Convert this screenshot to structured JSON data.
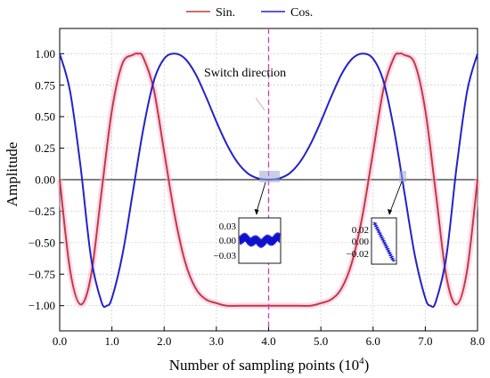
{
  "chart_data": {
    "type": "line",
    "xlabel_main": "Number of sampling points (10",
    "xlabel_sup": "4",
    "xlabel_close": ")",
    "ylabel": "Amplitude",
    "xlim": [
      0,
      8
    ],
    "ylim": [
      -1.2,
      1.2
    ],
    "x_ticks": [
      "0.0",
      "1.0",
      "2.0",
      "3.0",
      "4.0",
      "5.0",
      "6.0",
      "7.0",
      "8.0"
    ],
    "y_ticks": [
      "1.00",
      "0.75",
      "0.50",
      "0.25",
      "0.00",
      "−0.25",
      "−0.50",
      "−0.75",
      "−1.00"
    ],
    "grid": true,
    "legend_position": "top-center",
    "series": [
      {
        "name": "Sin.",
        "color": "#c43a3a",
        "x": [
          0.0,
          0.2,
          0.4,
          0.6,
          0.8,
          1.0,
          1.2,
          1.4,
          1.5,
          1.6,
          1.8,
          2.0,
          2.2,
          2.4,
          2.6,
          2.8,
          3.0,
          3.2,
          3.6,
          4.0,
          4.4,
          4.8,
          5.0,
          5.2,
          5.4,
          5.6,
          5.8,
          6.0,
          6.2,
          6.4,
          6.5,
          6.6,
          6.8,
          7.0,
          7.2,
          7.4,
          7.6,
          7.8,
          8.0
        ],
        "y": [
          0.0,
          -0.72,
          -0.99,
          -0.76,
          -0.1,
          0.55,
          0.92,
          0.99,
          1.0,
          0.97,
          0.72,
          0.22,
          -0.28,
          -0.65,
          -0.86,
          -0.95,
          -0.98,
          -1.0,
          -1.0,
          -1.0,
          -1.0,
          -1.0,
          -0.98,
          -0.95,
          -0.86,
          -0.65,
          -0.28,
          0.22,
          0.72,
          0.97,
          1.0,
          0.99,
          0.92,
          0.55,
          -0.1,
          -0.76,
          -0.99,
          -0.72,
          0.0
        ]
      },
      {
        "name": "Cos.",
        "color": "#2323c8",
        "x": [
          0.0,
          0.2,
          0.4,
          0.6,
          0.8,
          0.9,
          1.0,
          1.2,
          1.4,
          1.6,
          1.8,
          2.0,
          2.2,
          2.4,
          2.6,
          2.8,
          3.0,
          3.2,
          3.4,
          3.6,
          3.8,
          4.0,
          4.2,
          4.4,
          4.6,
          4.8,
          5.0,
          5.2,
          5.4,
          5.6,
          5.8,
          6.0,
          6.2,
          6.4,
          6.6,
          6.8,
          7.0,
          7.1,
          7.2,
          7.4,
          7.6,
          7.8,
          8.0
        ],
        "y": [
          1.0,
          0.7,
          0.1,
          -0.62,
          -0.97,
          -1.0,
          -0.94,
          -0.6,
          -0.1,
          0.4,
          0.78,
          0.96,
          1.0,
          0.96,
          0.84,
          0.66,
          0.46,
          0.28,
          0.14,
          0.05,
          0.01,
          0.0,
          0.01,
          0.05,
          0.14,
          0.28,
          0.46,
          0.66,
          0.84,
          0.96,
          1.0,
          0.96,
          0.78,
          0.4,
          -0.1,
          -0.6,
          -0.94,
          -1.0,
          -0.97,
          -0.62,
          0.1,
          0.7,
          1.0
        ]
      }
    ],
    "annotations": [
      {
        "text": "Switch direction",
        "x": 4.0
      }
    ],
    "insets": [
      {
        "ticks": [
          "0.03",
          "0.00",
          "−0.03"
        ]
      },
      {
        "ticks": [
          "0.02",
          "0.00",
          "−0.02"
        ]
      }
    ]
  }
}
